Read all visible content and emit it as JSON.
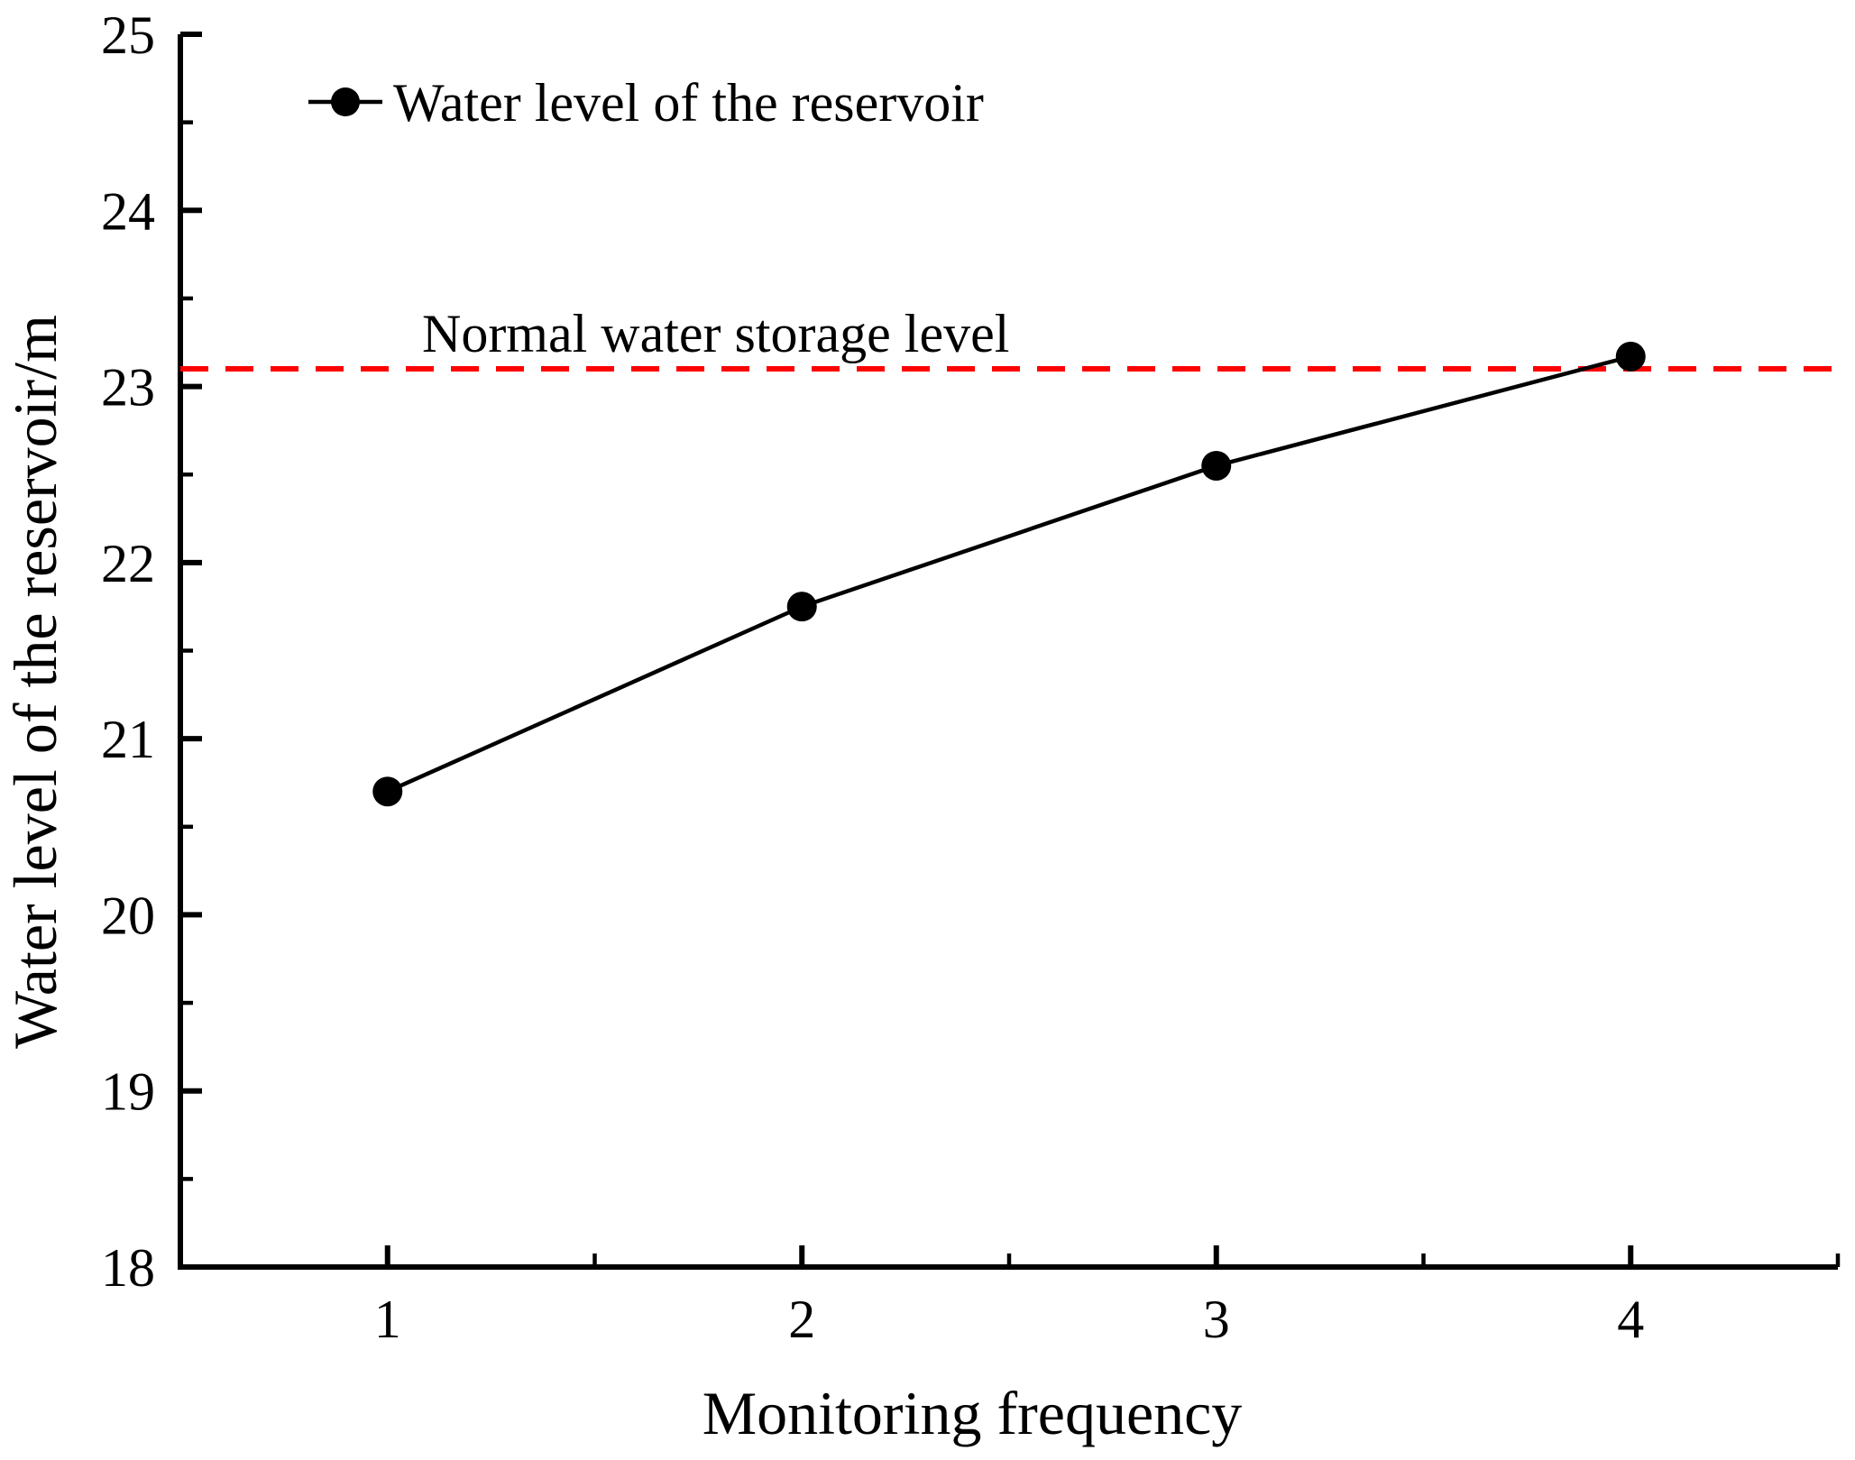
{
  "figure": {
    "background": "#ffffff"
  },
  "chart_data": {
    "type": "line",
    "x": [
      1,
      2,
      3,
      4
    ],
    "series": [
      {
        "name": "Water level of the reservoir",
        "values": [
          20.7,
          21.75,
          22.55,
          23.17
        ],
        "color": "#000000",
        "marker": "filled-circle",
        "line_style": "solid"
      }
    ],
    "reference_line": {
      "label": "Normal water storage level",
      "value": 23.1,
      "color": "#ff0000",
      "style": "dashed"
    },
    "xlabel": "Monitoring frequency",
    "ylabel": "Water level of the reservoir/m",
    "xlim": [
      0.5,
      4.5
    ],
    "ylim": [
      18,
      25
    ],
    "x_major_ticks": [
      1,
      2,
      3,
      4
    ],
    "x_minor_ticks": [
      1.5,
      2.5,
      3.5,
      4.5
    ],
    "y_major_ticks": [
      18,
      19,
      20,
      21,
      22,
      23,
      24,
      25
    ],
    "y_minor_ticks": [
      18.5,
      19.5,
      20.5,
      21.5,
      22.5,
      23.5,
      24.5
    ],
    "grid": false,
    "legend_position": "top-left-inside",
    "tick_direction": "in"
  }
}
